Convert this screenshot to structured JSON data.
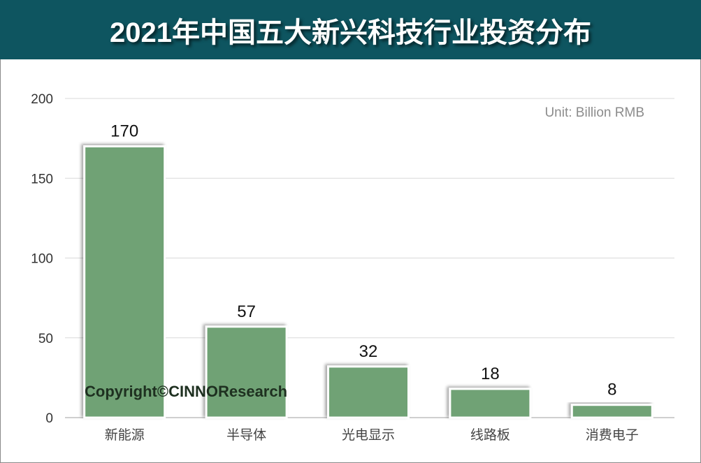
{
  "chart_data": {
    "type": "bar",
    "title": "2021年中国五大新兴科技行业投资分布",
    "categories": [
      "新能源",
      "半导体",
      "光电显示",
      "线路板",
      "消费电子"
    ],
    "values": [
      170,
      57,
      32,
      18,
      8
    ],
    "data_labels": [
      "170",
      "57",
      "32",
      "18",
      "8"
    ],
    "unit_note": "Unit: Billion RMB",
    "watermark": "Copyright©CINNOResearch",
    "xlabel": "",
    "ylabel": "",
    "ylim": [
      0,
      200
    ],
    "yticks": [
      0,
      50,
      100,
      150,
      200
    ],
    "grid": true,
    "legend": "none",
    "colors": {
      "bar": "#6fa274",
      "title_bg": "#0e5560",
      "grid": "#d9d9d9"
    }
  }
}
